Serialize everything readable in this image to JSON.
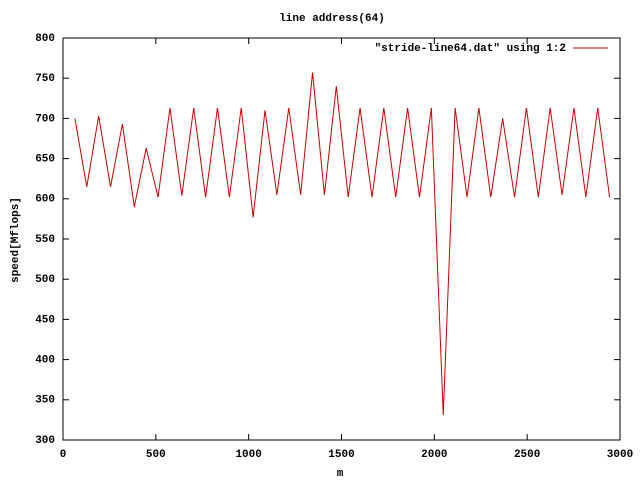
{
  "chart_data": {
    "type": "line",
    "title": "line address(64)",
    "x_label": "m",
    "y_label": "speed[Mflops]",
    "x": [
      64,
      128,
      192,
      256,
      320,
      384,
      448,
      512,
      576,
      640,
      704,
      768,
      832,
      896,
      960,
      1024,
      1088,
      1152,
      1216,
      1280,
      1344,
      1408,
      1472,
      1536,
      1600,
      1664,
      1728,
      1792,
      1856,
      1920,
      1984,
      2048,
      2112,
      2176,
      2240,
      2304,
      2368,
      2432,
      2496,
      2560,
      2624,
      2688,
      2752,
      2816,
      2880,
      2944
    ],
    "series": [
      {
        "name": "\"stride-line64.dat\" using 1:2",
        "color": "#cc0000",
        "values": [
          700,
          615,
          703,
          615,
          693,
          590,
          663,
          602,
          713,
          604,
          713,
          602,
          713,
          602,
          713,
          577,
          710,
          605,
          713,
          605,
          757,
          605,
          740,
          602,
          713,
          602,
          713,
          602,
          713,
          602,
          713,
          331,
          713,
          602,
          713,
          602,
          700,
          602,
          713,
          602,
          713,
          605,
          713,
          602,
          713,
          602
        ]
      }
    ],
    "xlim": [
      0,
      3000
    ],
    "xticks": [
      0,
      500,
      1000,
      1500,
      2000,
      2500,
      3000
    ],
    "ylim": [
      300,
      800
    ],
    "yticks": [
      300,
      350,
      400,
      450,
      500,
      550,
      600,
      650,
      700,
      750,
      800
    ],
    "legend": "top-right",
    "grid": false
  }
}
